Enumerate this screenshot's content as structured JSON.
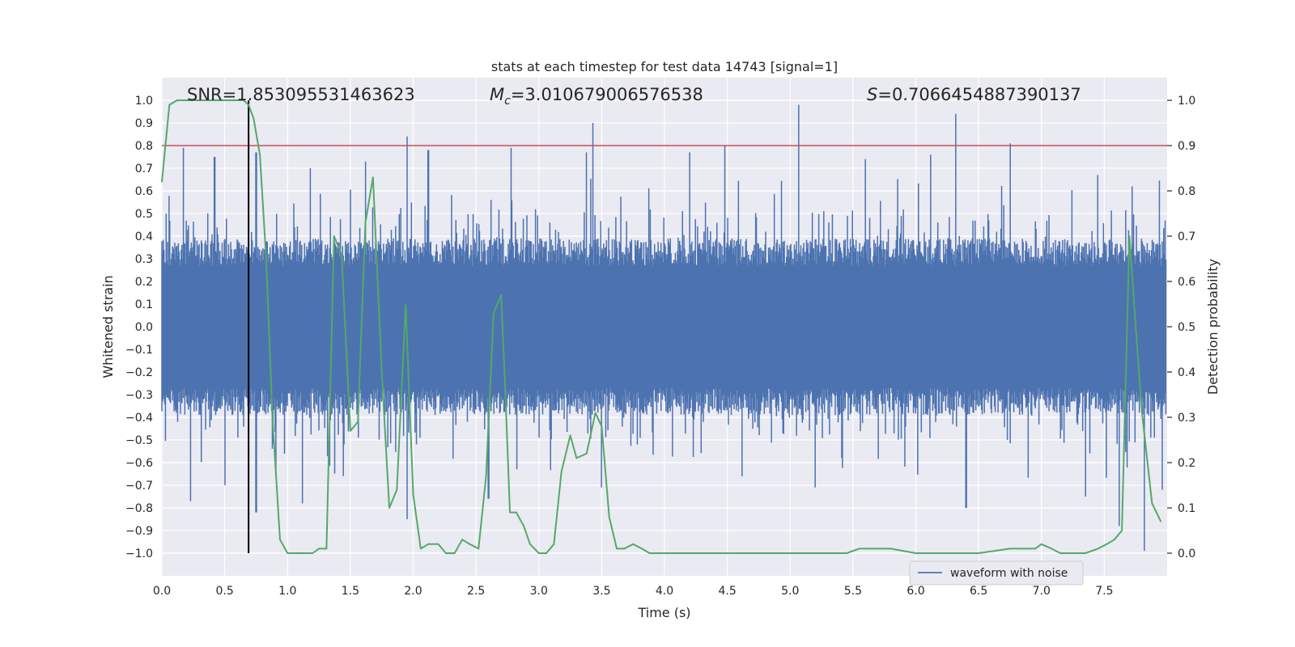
{
  "chart_data": {
    "type": "line",
    "title": "stats at each timestep for test data 14743 [signal=1]",
    "xlabel": "Time (s)",
    "ylabel_left": "Whitened strain",
    "ylabel_right": "Detection probability",
    "xlim": [
      0.0,
      8.0
    ],
    "ylim_left": [
      -1.1,
      1.1
    ],
    "ylim_right": [
      -0.05,
      1.05
    ],
    "x_ticks": [
      "0.0",
      "0.5",
      "1.0",
      "1.5",
      "2.0",
      "2.5",
      "3.0",
      "3.5",
      "4.0",
      "4.5",
      "5.0",
      "5.5",
      "6.0",
      "6.5",
      "7.0",
      "7.5"
    ],
    "y_ticks_left": [
      "-1.0",
      "-0.9",
      "-0.8",
      "-0.7",
      "-0.6",
      "-0.5",
      "-0.4",
      "-0.3",
      "-0.2",
      "-0.1",
      "0.0",
      "0.1",
      "0.2",
      "0.3",
      "0.4",
      "0.5",
      "0.6",
      "0.7",
      "0.8",
      "0.9",
      "1.0"
    ],
    "y_ticks_right": [
      "0.0",
      "0.1",
      "0.2",
      "0.3",
      "0.4",
      "0.5",
      "0.6",
      "0.7",
      "0.8",
      "0.9",
      "1.0"
    ],
    "grid": true,
    "legend_position": "lower-right",
    "annotations": {
      "snr": "SNR=1.853095531463623",
      "mc_symbol": "M",
      "mc_sub": "c",
      "mc_value": "=3.010679006576538",
      "s_symbol": "S",
      "s_value": "=0.7066454887390137"
    },
    "threshold_line": {
      "y_right": 0.9,
      "color": "#c44e52"
    },
    "signal_marker": {
      "x": 0.69,
      "y_start": -1.0,
      "y_end": 1.0,
      "color": "#000000"
    },
    "series": [
      {
        "name": "waveform with noise",
        "axis": "left",
        "color": "#4c72b0",
        "envelope_peaks": [
          [
            0.17,
            0.79
          ],
          [
            0.42,
            0.75
          ],
          [
            0.75,
            0.77
          ],
          [
            1.18,
            0.7
          ],
          [
            1.62,
            0.73
          ],
          [
            1.95,
            0.84
          ],
          [
            2.12,
            0.78
          ],
          [
            2.78,
            0.79
          ],
          [
            3.38,
            0.77
          ],
          [
            3.43,
            0.9
          ],
          [
            4.2,
            0.77
          ],
          [
            4.48,
            0.8
          ],
          [
            5.07,
            0.98
          ],
          [
            5.6,
            0.74
          ],
          [
            6.12,
            0.76
          ],
          [
            6.32,
            0.94
          ],
          [
            6.75,
            0.81
          ],
          [
            7.45,
            0.67
          ],
          [
            7.72,
            0.62
          ]
        ],
        "envelope_troughs": [
          [
            0.23,
            -0.77
          ],
          [
            0.5,
            -0.7
          ],
          [
            0.75,
            -0.82
          ],
          [
            1.12,
            -0.78
          ],
          [
            1.95,
            -0.85
          ],
          [
            2.6,
            -0.76
          ],
          [
            3.5,
            -0.71
          ],
          [
            5.2,
            -0.71
          ],
          [
            6.4,
            -0.8
          ],
          [
            7.35,
            -0.75
          ],
          [
            7.62,
            -0.88
          ],
          [
            7.82,
            -0.99
          ],
          [
            7.96,
            -0.72
          ]
        ]
      },
      {
        "name": "detection probability",
        "axis": "right",
        "color": "#55a868",
        "x": [
          0.0,
          0.06,
          0.12,
          0.2,
          0.3,
          0.4,
          0.5,
          0.6,
          0.65,
          0.69,
          0.73,
          0.78,
          0.83,
          0.88,
          0.94,
          1.0,
          1.1,
          1.2,
          1.25,
          1.31,
          1.37,
          1.43,
          1.5,
          1.56,
          1.62,
          1.68,
          1.75,
          1.81,
          1.87,
          1.94,
          2.0,
          2.06,
          2.12,
          2.2,
          2.26,
          2.33,
          2.39,
          2.45,
          2.52,
          2.58,
          2.64,
          2.7,
          2.73,
          2.77,
          2.82,
          2.88,
          2.93,
          3.0,
          3.06,
          3.12,
          3.18,
          3.25,
          3.3,
          3.38,
          3.45,
          3.5,
          3.56,
          3.62,
          3.68,
          3.75,
          3.82,
          3.88,
          3.94,
          4.0,
          4.12,
          4.25,
          4.5,
          4.75,
          5.0,
          5.25,
          5.45,
          5.55,
          5.65,
          5.8,
          6.0,
          6.25,
          6.5,
          6.75,
          6.85,
          6.95,
          7.0,
          7.08,
          7.15,
          7.25,
          7.35,
          7.45,
          7.52,
          7.58,
          7.64,
          7.7,
          7.75,
          7.8,
          7.88,
          7.95
        ],
        "y": [
          0.82,
          0.99,
          1.0,
          1.0,
          1.0,
          1.0,
          1.0,
          1.0,
          1.0,
          0.99,
          0.96,
          0.88,
          0.65,
          0.3,
          0.03,
          0.0,
          0.0,
          0.0,
          0.01,
          0.01,
          0.7,
          0.66,
          0.27,
          0.29,
          0.73,
          0.83,
          0.4,
          0.1,
          0.14,
          0.55,
          0.13,
          0.01,
          0.02,
          0.02,
          0.0,
          0.0,
          0.03,
          0.02,
          0.01,
          0.17,
          0.53,
          0.57,
          0.38,
          0.09,
          0.09,
          0.06,
          0.02,
          0.0,
          0.0,
          0.02,
          0.18,
          0.26,
          0.21,
          0.22,
          0.31,
          0.28,
          0.08,
          0.01,
          0.01,
          0.02,
          0.01,
          0.0,
          0.0,
          0.0,
          0.0,
          0.0,
          0.0,
          0.0,
          0.0,
          0.0,
          0.0,
          0.01,
          0.01,
          0.01,
          0.0,
          0.0,
          0.0,
          0.01,
          0.01,
          0.01,
          0.02,
          0.01,
          0.0,
          0.0,
          0.0,
          0.01,
          0.02,
          0.03,
          0.05,
          0.7,
          0.5,
          0.31,
          0.11,
          0.07
        ]
      }
    ]
  }
}
